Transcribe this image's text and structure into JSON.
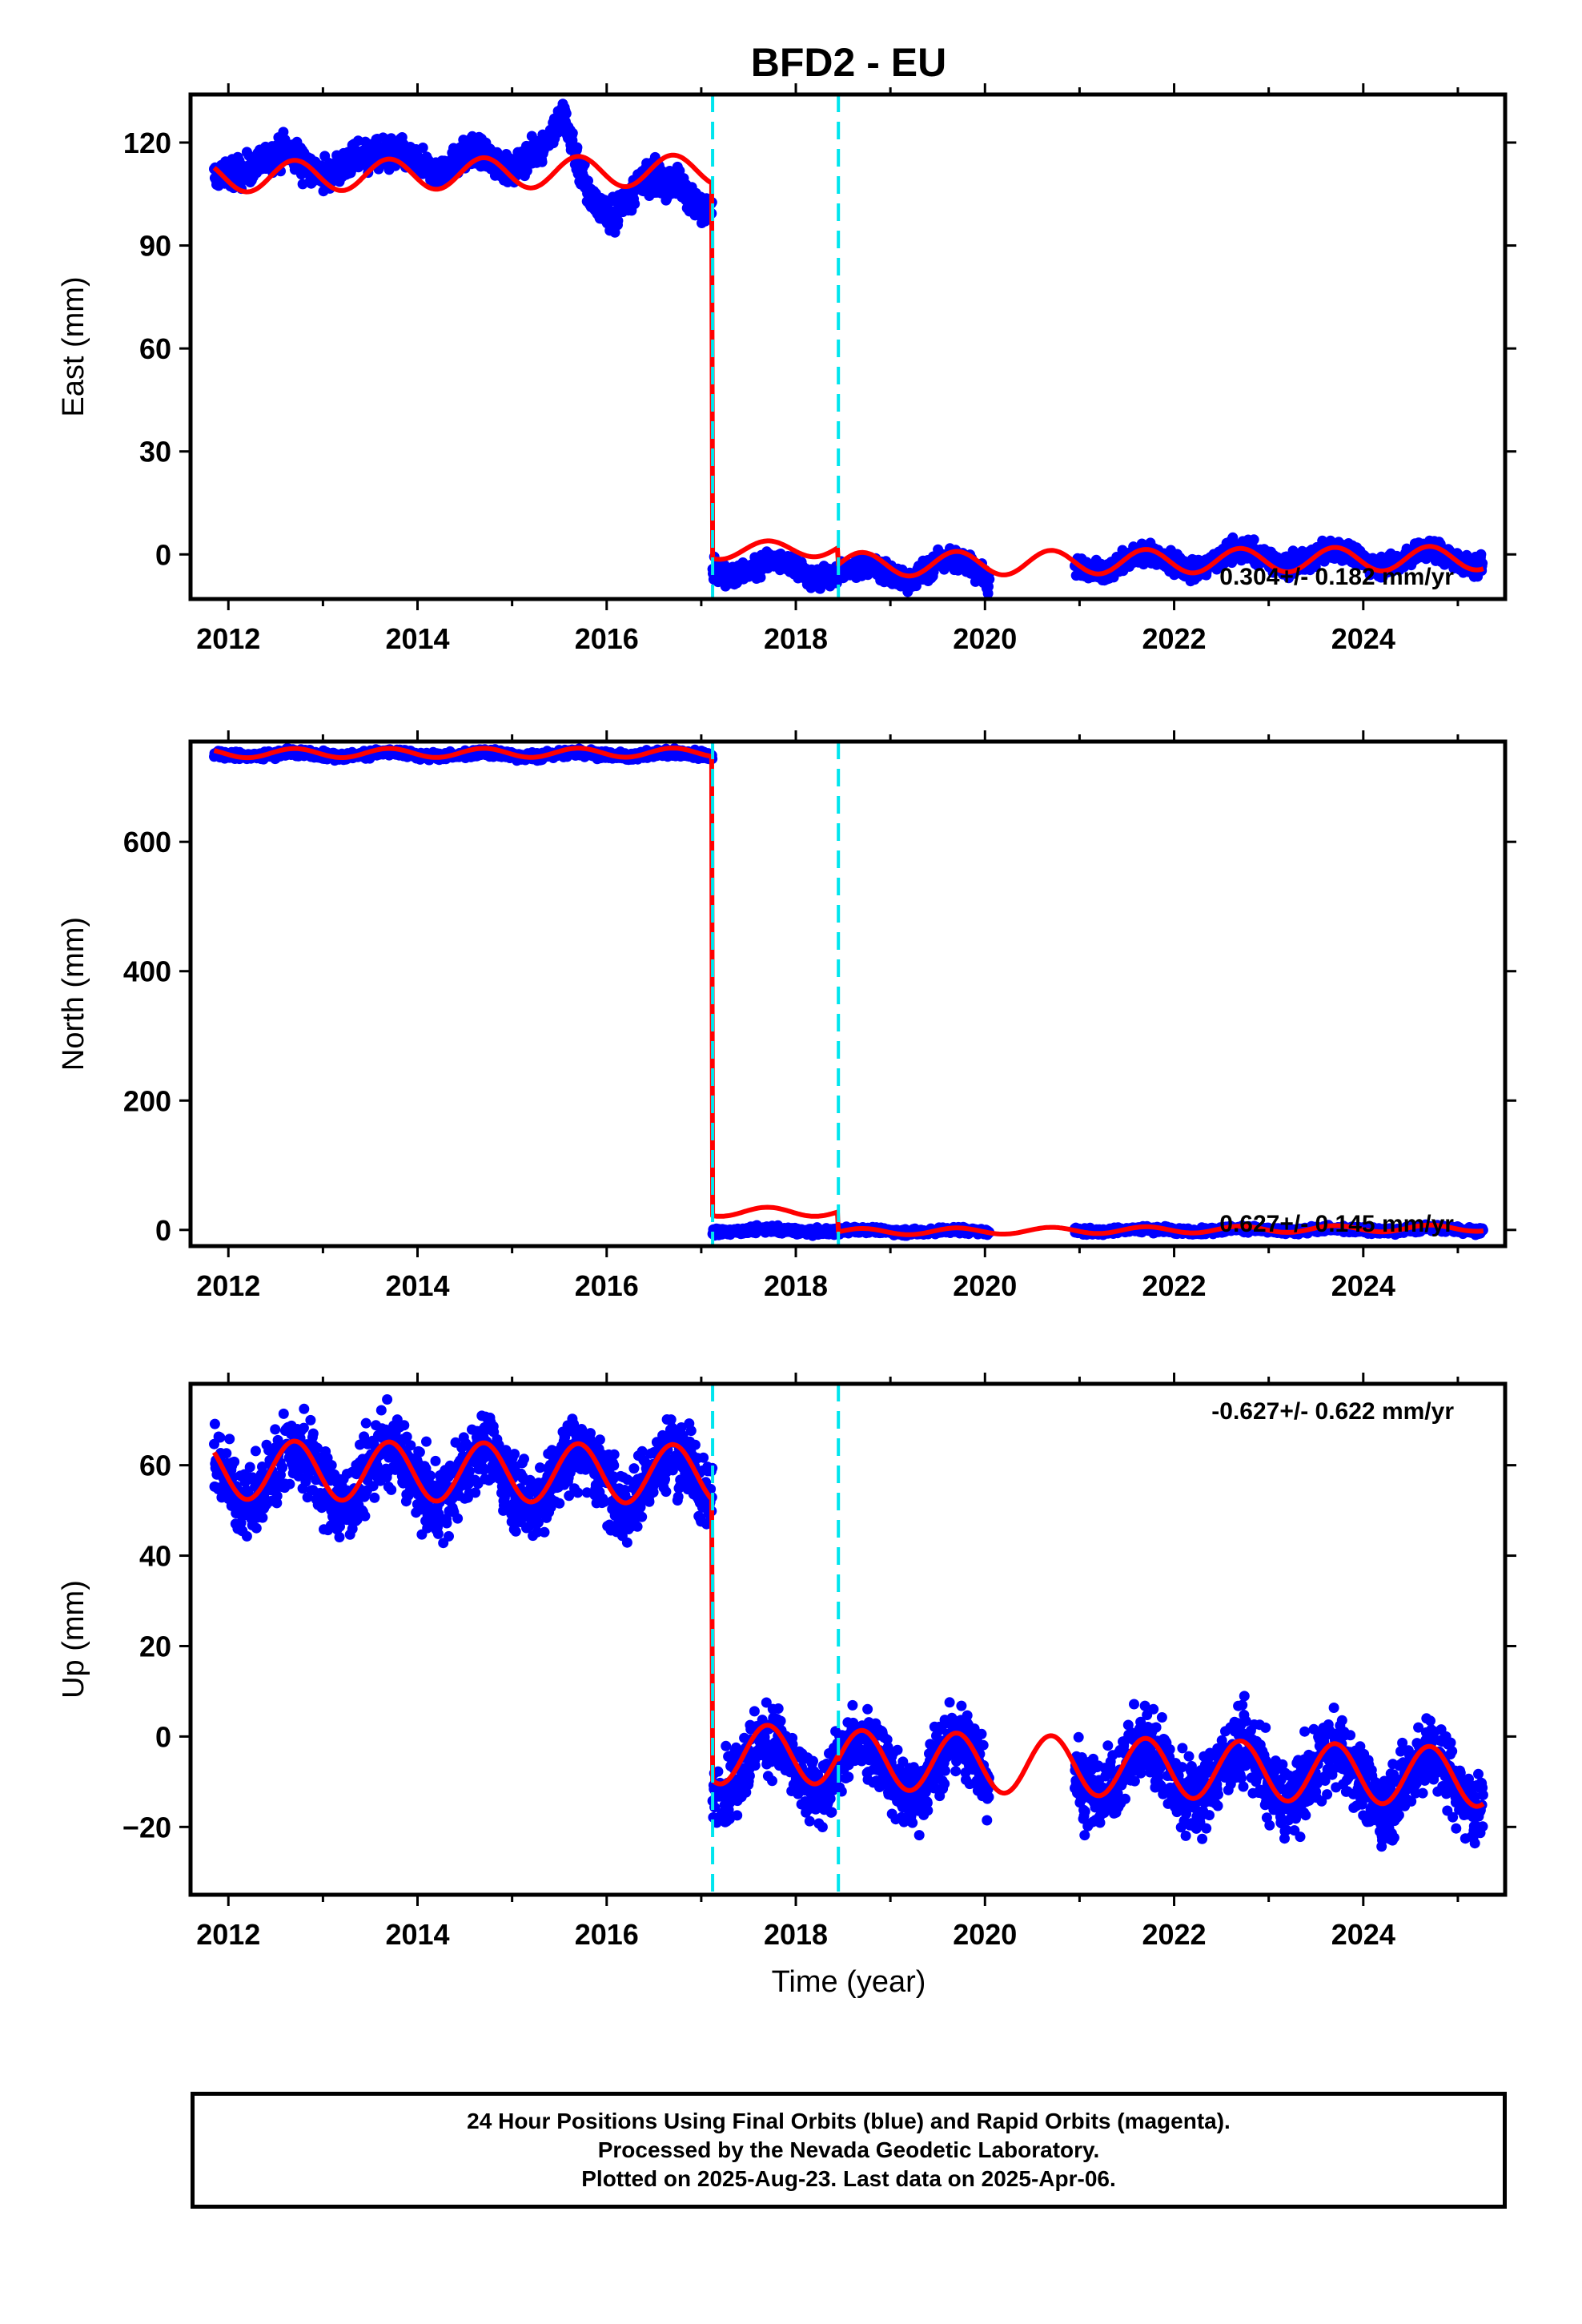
{
  "title": "BFD2 - EU",
  "x_axis_label": "Time (year)",
  "footer": {
    "line1": "24 Hour Positions Using Final Orbits (blue) and Rapid Orbits (magenta).",
    "line2": "Processed by the Nevada Geodetic Laboratory.",
    "line3": "Plotted on 2025-Aug-23. Last data on 2025-Apr-06."
  },
  "colors": {
    "data": "#0000ff",
    "model": "#ff0000",
    "breaks": "#00e5ee",
    "frame": "#000000"
  },
  "chart_data": [
    {
      "type": "scatter",
      "ylabel": "East (mm)",
      "rate_label": "0.304+/- 0.182 mm/yr",
      "xlim": [
        2011.6,
        2025.5
      ],
      "ylim": [
        -13,
        134
      ],
      "xticks": [
        2012,
        2014,
        2016,
        2018,
        2020,
        2022,
        2024
      ],
      "yticks": [
        0,
        30,
        60,
        90,
        120
      ],
      "breaks": [
        2017.12,
        2018.45
      ],
      "data_gaps": [
        [
          2020.05,
          2020.95
        ]
      ],
      "data_segments": [
        {
          "start": 2011.85,
          "end": 2017.12,
          "mean": [
            [
              2011.85,
              110
            ],
            [
              2012.2,
              112
            ],
            [
              2012.6,
              118
            ],
            [
              2013.0,
              110
            ],
            [
              2013.4,
              116
            ],
            [
              2013.8,
              117
            ],
            [
              2014.2,
              111
            ],
            [
              2014.6,
              118
            ],
            [
              2015.0,
              112
            ],
            [
              2015.3,
              118
            ],
            [
              2015.55,
              128
            ],
            [
              2015.8,
              105
            ],
            [
              2016.05,
              98
            ],
            [
              2016.4,
              110
            ],
            [
              2016.75,
              108
            ],
            [
              2017.0,
              100
            ],
            [
              2017.12,
              103
            ]
          ],
          "amp": 0,
          "noise": 2.2
        },
        {
          "start": 2017.12,
          "end": 2020.05,
          "mean": [
            [
              2017.12,
              -2
            ],
            [
              2017.5,
              -6
            ],
            [
              2018.0,
              -3
            ],
            [
              2018.5,
              -6
            ],
            [
              2019.0,
              -5
            ],
            [
              2019.5,
              -3
            ],
            [
              2020.05,
              -6
            ]
          ],
          "amp": 2.5,
          "noise": 1.6
        },
        {
          "start": 2020.95,
          "end": 2025.27,
          "mean": [
            [
              2020.95,
              -3
            ],
            [
              2022.0,
              -2
            ],
            [
              2023.0,
              -1
            ],
            [
              2024.0,
              -1
            ],
            [
              2025.27,
              -1
            ]
          ],
          "amp": 2.5,
          "noise": 1.5
        }
      ],
      "model": [
        {
          "start": 2011.85,
          "end": 2017.12,
          "trend": [
            [
              2011.85,
              110
            ],
            [
              2017.12,
              112
            ]
          ],
          "amp": 4.5
        },
        {
          "start": 2017.12,
          "end": 2018.45,
          "trend": [
            [
              2017.12,
              1
            ],
            [
              2018.45,
              2
            ]
          ],
          "amp": 2.5
        },
        {
          "start": 2018.45,
          "end": 2025.27,
          "trend": [
            [
              2018.45,
              -3
            ],
            [
              2025.27,
              -1
            ]
          ],
          "amp": 3.5
        }
      ]
    },
    {
      "type": "scatter",
      "ylabel": "North (mm)",
      "rate_label": "0.627+/- 0.145 mm/yr",
      "xlim": [
        2011.6,
        2025.5
      ],
      "ylim": [
        -25,
        755
      ],
      "xticks": [
        2012,
        2014,
        2016,
        2018,
        2020,
        2022,
        2024
      ],
      "yticks": [
        0,
        200,
        400,
        600
      ],
      "breaks": [
        2017.12,
        2018.45
      ],
      "data_gaps": [
        [
          2020.05,
          2020.95
        ]
      ],
      "data_segments": [
        {
          "start": 2011.85,
          "end": 2017.12,
          "mean": [
            [
              2011.85,
              735
            ],
            [
              2017.12,
              735
            ]
          ],
          "amp": 3,
          "noise": 3
        },
        {
          "start": 2017.12,
          "end": 2020.05,
          "mean": [
            [
              2017.12,
              -1
            ],
            [
              2020.05,
              -2
            ]
          ],
          "amp": 2,
          "noise": 2.5
        },
        {
          "start": 2020.95,
          "end": 2025.27,
          "mean": [
            [
              2020.95,
              -1
            ],
            [
              2025.27,
              1
            ]
          ],
          "amp": 2,
          "noise": 2.5
        }
      ],
      "model": [
        {
          "start": 2011.85,
          "end": 2017.12,
          "trend": [
            [
              2011.85,
              737
            ],
            [
              2017.12,
              738
            ]
          ],
          "amp": 7
        },
        {
          "start": 2017.12,
          "end": 2018.45,
          "trend": [
            [
              2017.12,
              28
            ],
            [
              2018.45,
              28
            ]
          ],
          "amp": 7
        },
        {
          "start": 2018.45,
          "end": 2025.27,
          "trend": [
            [
              2018.45,
              -3
            ],
            [
              2025.27,
              3
            ]
          ],
          "amp": 5
        }
      ]
    },
    {
      "type": "scatter",
      "ylabel": "Up (mm)",
      "rate_label": "-0.627+/- 0.622 mm/yr",
      "xlim": [
        2011.6,
        2025.5
      ],
      "ylim": [
        -35,
        78
      ],
      "xticks": [
        2012,
        2014,
        2016,
        2018,
        2020,
        2022,
        2024
      ],
      "yticks": [
        -20,
        0,
        20,
        40,
        60
      ],
      "breaks": [
        2017.12,
        2018.45
      ],
      "data_gaps": [
        [
          2020.05,
          2020.95
        ]
      ],
      "data_segments": [
        {
          "start": 2011.85,
          "end": 2017.12,
          "mean": [
            [
              2011.85,
              58
            ],
            [
              2017.12,
              57
            ]
          ],
          "amp": 6,
          "noise": 4.2
        },
        {
          "start": 2017.12,
          "end": 2020.05,
          "mean": [
            [
              2017.12,
              -6
            ],
            [
              2020.05,
              -7
            ]
          ],
          "amp": 6,
          "noise": 4.0
        },
        {
          "start": 2020.95,
          "end": 2025.27,
          "mean": [
            [
              2020.95,
              -7
            ],
            [
              2025.27,
              -10
            ]
          ],
          "amp": 6,
          "noise": 4.2
        }
      ],
      "model": [
        {
          "start": 2011.85,
          "end": 2017.12,
          "trend": [
            [
              2011.85,
              59
            ],
            [
              2017.12,
              58
            ]
          ],
          "amp": 6.5
        },
        {
          "start": 2017.12,
          "end": 2018.45,
          "trend": [
            [
              2017.12,
              -4
            ],
            [
              2018.45,
              -4
            ]
          ],
          "amp": 6.5
        },
        {
          "start": 2018.45,
          "end": 2025.27,
          "trend": [
            [
              2018.45,
              -5
            ],
            [
              2025.27,
              -9
            ]
          ],
          "amp": 6.5
        }
      ]
    }
  ]
}
